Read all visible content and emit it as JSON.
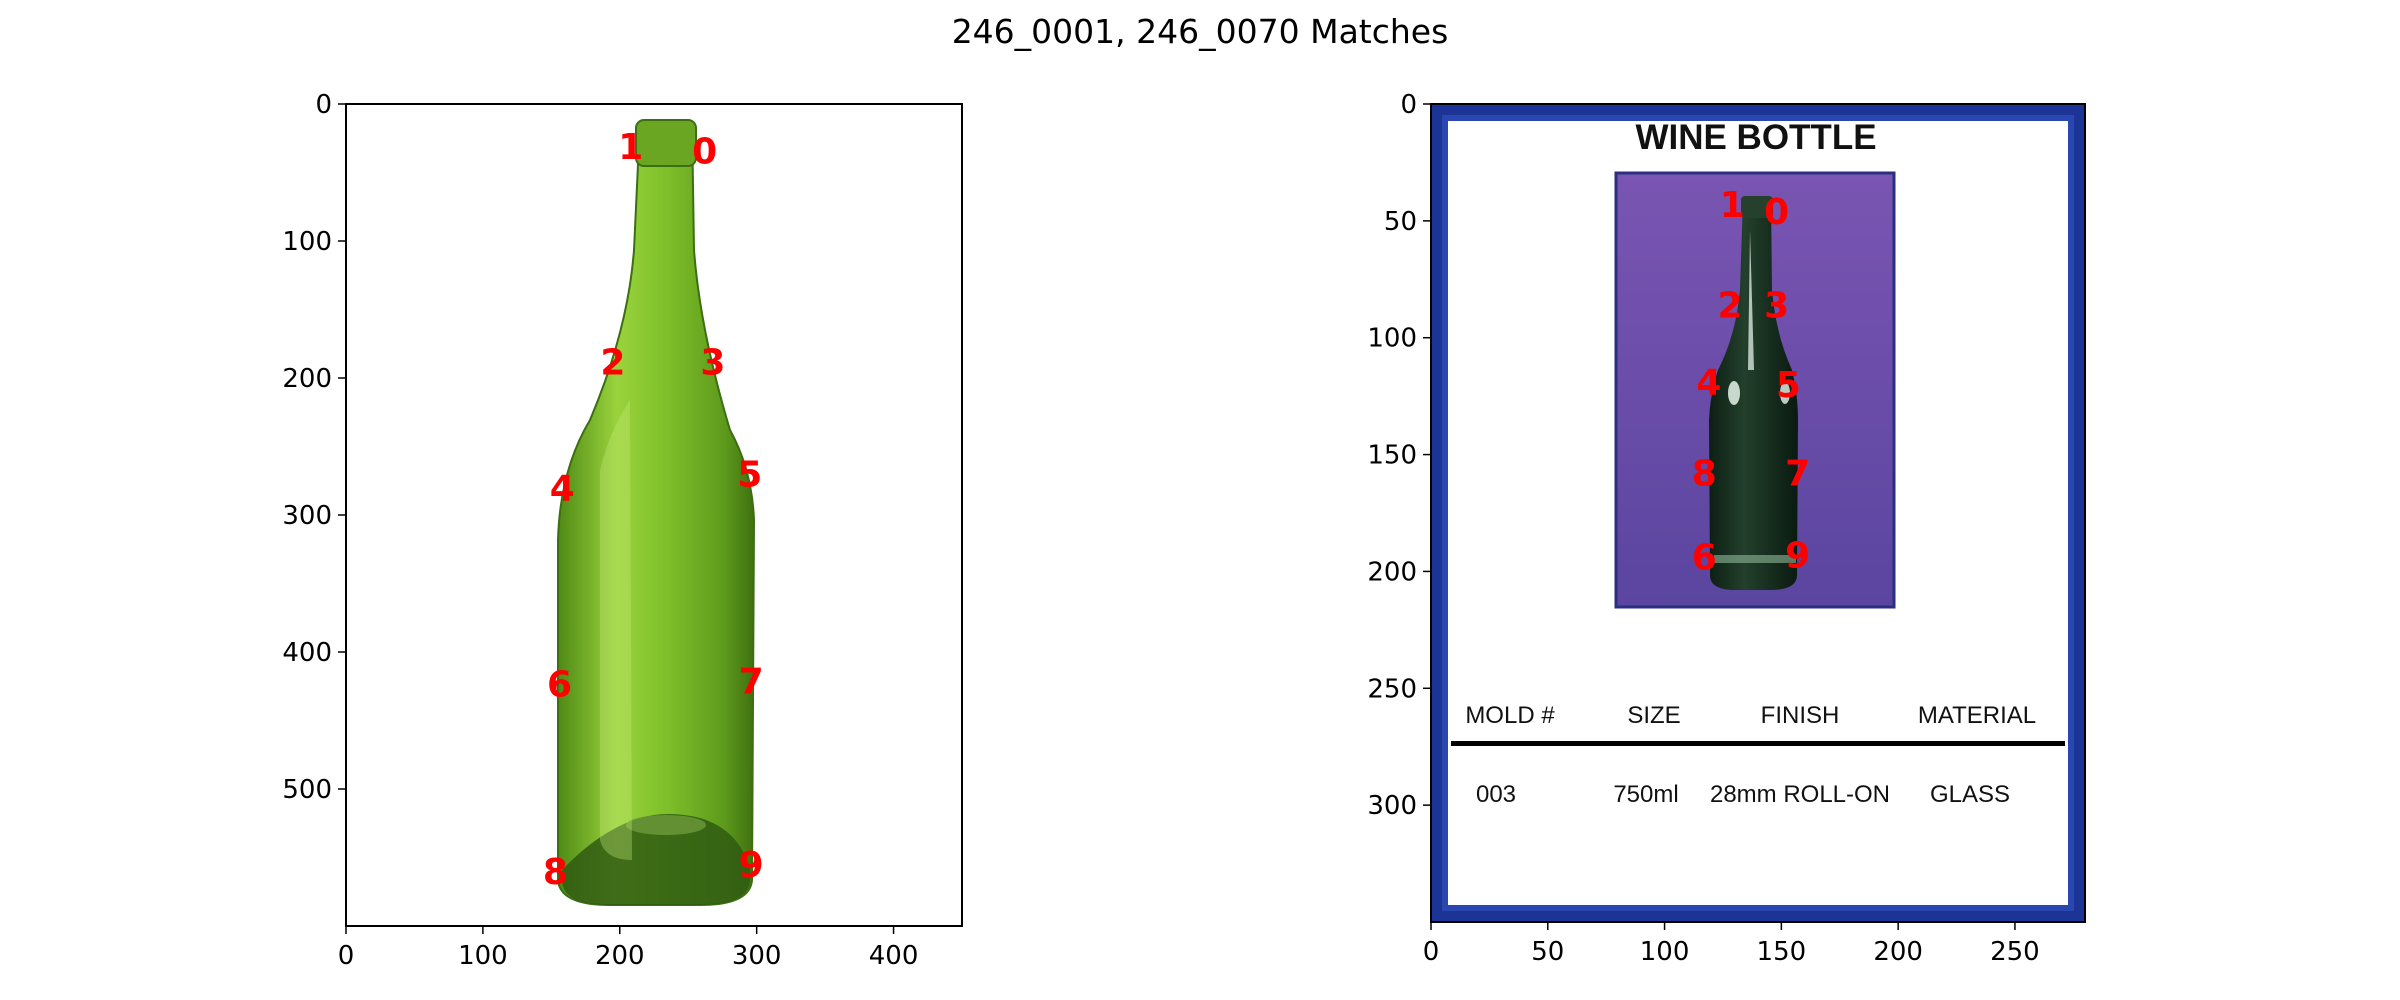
{
  "figure": {
    "title": "246_0001, 246_0070 Matches"
  },
  "panels": [
    {
      "id": "left",
      "xlim": [
        0,
        450
      ],
      "ylim": [
        600,
        0
      ],
      "xticks": [
        0,
        100,
        200,
        300,
        400
      ],
      "yticks": [
        0,
        100,
        200,
        300,
        400,
        500
      ],
      "keypoints": [
        {
          "label": "1",
          "x": 208,
          "y": 33
        },
        {
          "label": "0",
          "x": 262,
          "y": 36
        },
        {
          "label": "2",
          "x": 195,
          "y": 190
        },
        {
          "label": "3",
          "x": 268,
          "y": 190
        },
        {
          "label": "4",
          "x": 158,
          "y": 282
        },
        {
          "label": "5",
          "x": 295,
          "y": 272
        },
        {
          "label": "6",
          "x": 156,
          "y": 425
        },
        {
          "label": "7",
          "x": 296,
          "y": 423
        },
        {
          "label": "8",
          "x": 153,
          "y": 562
        },
        {
          "label": "9",
          "x": 296,
          "y": 557
        }
      ]
    },
    {
      "id": "right",
      "xlim": [
        0,
        280
      ],
      "ylim": [
        350,
        0
      ],
      "xticks": [
        0,
        50,
        100,
        150,
        200,
        250
      ],
      "yticks": [
        0,
        50,
        100,
        150,
        200,
        250,
        300
      ],
      "document": {
        "heading": "WINE BOTTLE",
        "columns": [
          "MOLD #",
          "SIZE",
          "FINISH",
          "MATERIAL"
        ],
        "values": [
          "003",
          "750ml",
          "28mm ROLL-ON",
          "GLASS"
        ]
      },
      "keypoints": [
        {
          "label": "1",
          "x": 129,
          "y": 44
        },
        {
          "label": "0",
          "x": 148,
          "y": 47
        },
        {
          "label": "2",
          "x": 128,
          "y": 87
        },
        {
          "label": "3",
          "x": 148,
          "y": 87
        },
        {
          "label": "4",
          "x": 119,
          "y": 120
        },
        {
          "label": "5",
          "x": 153,
          "y": 121
        },
        {
          "label": "8",
          "x": 117,
          "y": 159
        },
        {
          "label": "7",
          "x": 157,
          "y": 159
        },
        {
          "label": "6",
          "x": 117,
          "y": 195
        },
        {
          "label": "9",
          "x": 157,
          "y": 194
        }
      ]
    }
  ],
  "colors": {
    "keypoint": "#ff0000",
    "bottle_green": "#7fc02a",
    "frame_blue": "#1c3496",
    "photo_purple": "#6a4ba6"
  }
}
